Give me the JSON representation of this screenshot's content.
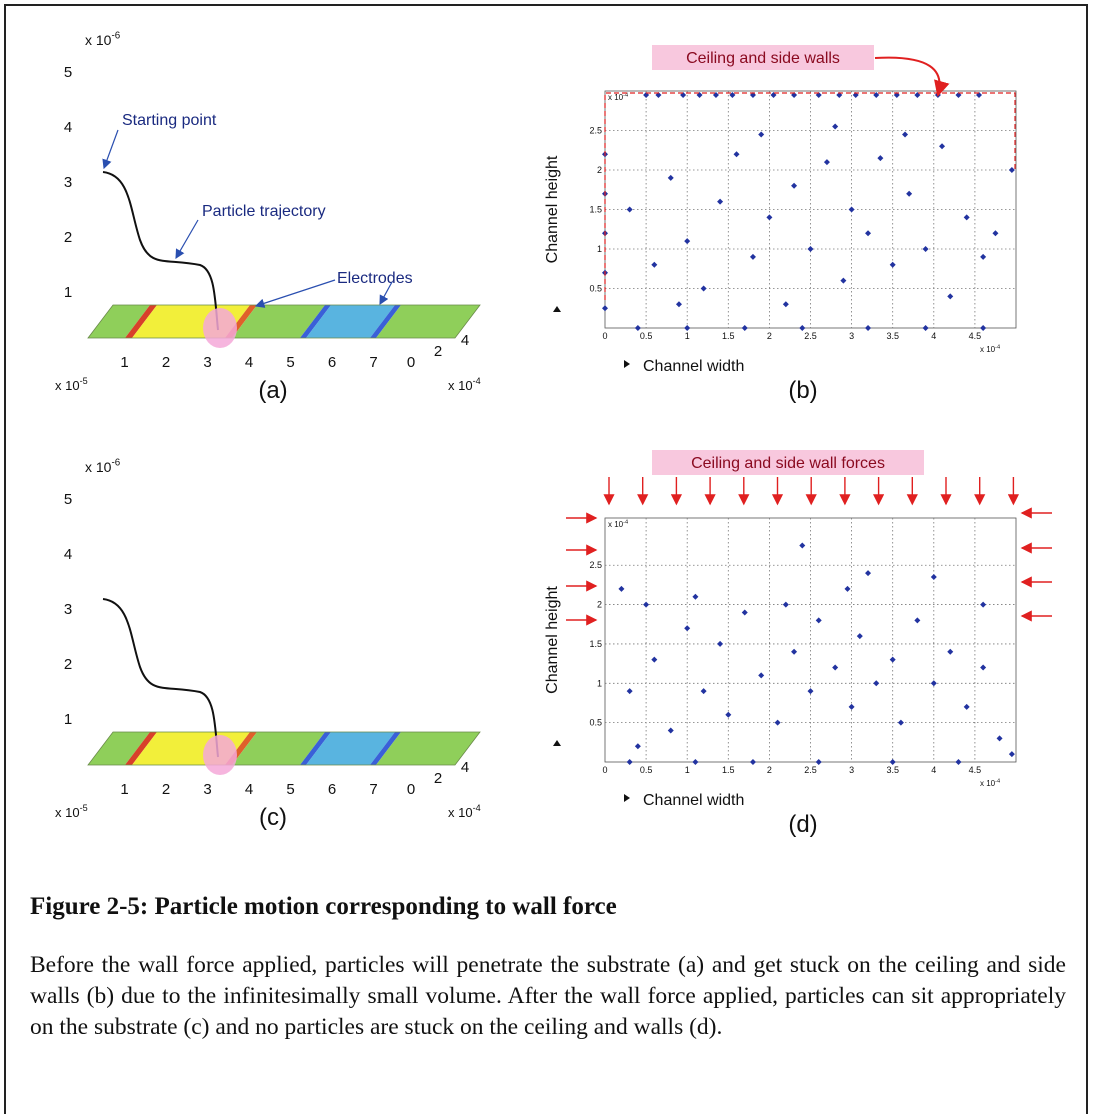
{
  "figure": {
    "panels": [
      {
        "type": "3d",
        "label": "(a)",
        "z_ticks": [
          1,
          2,
          3,
          4,
          5
        ],
        "z_exponent": {
          "base": "x 10",
          "exponent": "-6"
        },
        "x_ticks": [
          1,
          2,
          3,
          4,
          5,
          6,
          7
        ],
        "x_exponent": {
          "base": "x 10",
          "exponent": "-5"
        },
        "y_ticks": [
          0,
          2,
          4
        ],
        "y_exponent": {
          "base": "x 10",
          "exponent": "-4"
        },
        "annotations": [
          "Starting point",
          "Particle trajectory",
          "Electrodes"
        ]
      },
      {
        "type": "scatter",
        "label": "(b)",
        "annotation": "Ceiling and side walls",
        "xlabel": "Channel width",
        "ylabel": "Channel height",
        "xlim": [
          0,
          5
        ],
        "ylim": [
          0,
          3
        ],
        "xticks": [
          0,
          0.5,
          1,
          1.5,
          2,
          2.5,
          3,
          3.5,
          4,
          4.5
        ],
        "yticks": [
          0.5,
          1,
          1.5,
          2,
          2.5
        ],
        "x_exponent": {
          "base": "x 10",
          "exponent": "-4"
        },
        "y_exponent": {
          "base": "x 10",
          "exponent": "-4"
        },
        "x": [
          0.5,
          0.65,
          0.95,
          1.15,
          1.35,
          1.55,
          1.8,
          2.05,
          2.3,
          2.6,
          2.85,
          3.05,
          3.3,
          3.55,
          3.8,
          4.05,
          4.3,
          4.55,
          0,
          0,
          0,
          0,
          0,
          0.4,
          1.0,
          1.7,
          2.4,
          3.2,
          3.9,
          4.6,
          0.3,
          0.6,
          0.8,
          1.0,
          1.2,
          1.4,
          1.6,
          1.8,
          2.0,
          2.2,
          2.3,
          2.5,
          2.7,
          2.9,
          3.0,
          3.2,
          3.35,
          3.5,
          3.7,
          3.9,
          4.1,
          4.2,
          4.4,
          4.6,
          4.75,
          0.9,
          1.9,
          2.8,
          3.65,
          4.95
        ],
        "y": [
          2.95,
          2.95,
          2.95,
          2.95,
          2.95,
          2.95,
          2.95,
          2.95,
          2.95,
          2.95,
          2.95,
          2.95,
          2.95,
          2.95,
          2.95,
          2.95,
          2.95,
          2.95,
          0.25,
          0.7,
          1.2,
          1.7,
          2.2,
          0,
          0,
          0,
          0,
          0,
          0,
          0,
          1.5,
          0.8,
          1.9,
          1.1,
          0.5,
          1.6,
          2.2,
          0.9,
          1.4,
          0.3,
          1.8,
          1.0,
          2.1,
          0.6,
          1.5,
          1.2,
          2.15,
          0.8,
          1.7,
          1.0,
          2.3,
          0.4,
          1.4,
          0.9,
          1.2,
          0.3,
          2.45,
          2.55,
          2.45,
          2.0
        ]
      },
      {
        "type": "3d",
        "label": "(c)",
        "z_ticks": [
          1,
          2,
          3,
          4,
          5
        ],
        "z_exponent": {
          "base": "x 10",
          "exponent": "-6"
        },
        "x_ticks": [
          1,
          2,
          3,
          4,
          5,
          6,
          7
        ],
        "x_exponent": {
          "base": "x 10",
          "exponent": "-5"
        },
        "y_ticks": [
          0,
          2,
          4
        ],
        "y_exponent": {
          "base": "x 10",
          "exponent": "-4"
        }
      },
      {
        "type": "scatter",
        "label": "(d)",
        "annotation": "Ceiling and side wall forces",
        "xlabel": "Channel width",
        "ylabel": "Channel height",
        "xlim": [
          0,
          5
        ],
        "ylim": [
          0,
          3.1
        ],
        "xticks": [
          0,
          0.5,
          1,
          1.5,
          2,
          2.5,
          3,
          3.5,
          4,
          4.5
        ],
        "yticks": [
          0.5,
          1,
          1.5,
          2,
          2.5
        ],
        "x_exponent": {
          "base": "x 10",
          "exponent": "-4"
        },
        "y_exponent": {
          "base": "x 10",
          "exponent": "-4"
        },
        "x": [
          0.3,
          1.1,
          1.8,
          2.6,
          3.5,
          4.3,
          0.2,
          2.4,
          3.2,
          4.0,
          4.6,
          0.5,
          0.3,
          0.6,
          0.8,
          1.0,
          1.2,
          1.4,
          1.5,
          1.7,
          1.9,
          2.1,
          2.3,
          2.5,
          2.6,
          2.8,
          3.0,
          3.1,
          3.3,
          3.5,
          3.6,
          3.8,
          4.0,
          4.2,
          4.4,
          4.6,
          4.8,
          0.4,
          1.1,
          2.2,
          2.95,
          4.95
        ],
        "y": [
          0,
          0,
          0,
          0,
          0,
          0,
          2.2,
          2.75,
          2.4,
          2.35,
          2.0,
          2.0,
          0.9,
          1.3,
          0.4,
          1.7,
          0.9,
          1.5,
          0.6,
          1.9,
          1.1,
          0.5,
          1.4,
          0.9,
          1.8,
          1.2,
          0.7,
          1.6,
          1.0,
          1.3,
          0.5,
          1.8,
          1.0,
          1.4,
          0.7,
          1.2,
          0.3,
          0.2,
          2.1,
          2.0,
          2.2,
          0.1
        ]
      }
    ]
  },
  "caption": "Figure 2-5: Particle motion corresponding to wall force",
  "paragraph": "Before the wall force applied, particles will penetrate the substrate (a) and get stuck on the ceiling and side walls (b) due to the infinitesimally small volume. After the wall force applied, particles can sit appropriately on the substrate (c) and no particles are stuck on the ceiling and walls (d)."
}
